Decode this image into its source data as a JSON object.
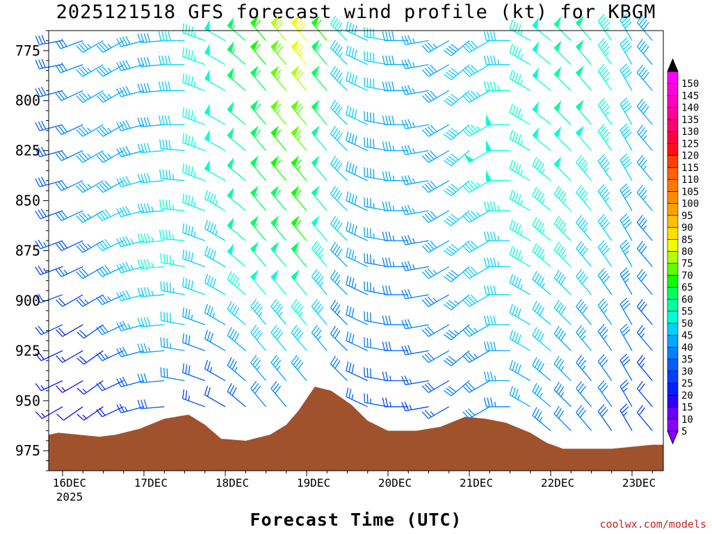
{
  "chart_data": {
    "type": "wind-barb-time-height",
    "title": "2025121518 GFS forecast wind profile (kt) for KBGM",
    "xlabel": "Forecast Time (UTC)",
    "ylabel": "",
    "credit": "coolwx.com/models",
    "x_range_days": [
      "2025-12-15T18",
      "2025-12-23T06"
    ],
    "y_range_hpa": [
      765,
      985
    ],
    "y_ticks": [
      775,
      800,
      825,
      850,
      875,
      900,
      925,
      950,
      975
    ],
    "x_ticks": [
      "16DEC",
      "17DEC",
      "18DEC",
      "19DEC",
      "20DEC",
      "21DEC",
      "22DEC",
      "23DEC"
    ],
    "x_year_label": "2025",
    "levels_hpa": [
      770,
      782,
      795,
      812,
      825,
      840,
      855,
      870,
      883,
      897,
      912,
      925,
      940,
      953,
      965
    ],
    "colorbar": {
      "values": [
        5,
        10,
        15,
        20,
        25,
        30,
        35,
        40,
        45,
        50,
        55,
        60,
        65,
        70,
        75,
        80,
        85,
        90,
        95,
        100,
        105,
        110,
        115,
        120,
        125,
        130,
        135,
        140,
        145,
        150
      ],
      "labels": [
        "5",
        "10",
        "15",
        "20",
        "25",
        "30",
        "35",
        "40",
        "45",
        "50",
        "55",
        "60",
        "65",
        "70",
        "75",
        "80",
        "85",
        "90",
        "95",
        "100",
        "105",
        "110",
        "115",
        "120",
        "125",
        "130",
        "135",
        "140",
        "145",
        "150"
      ],
      "colors": [
        "#8a00ff",
        "#6a00ff",
        "#2a00ff",
        "#0020ff",
        "#0040ff",
        "#005cff",
        "#0080ff",
        "#00a8ff",
        "#00d2ff",
        "#00ffd8",
        "#00ffa0",
        "#00ff60",
        "#10ff00",
        "#60ff00",
        "#b0ff00",
        "#f0ff00",
        "#ffe000",
        "#ffc000",
        "#ffa000",
        "#ff8c00",
        "#ff7800",
        "#ff6000",
        "#ff4000",
        "#ff1010",
        "#ff0040",
        "#ff0070",
        "#ff0098",
        "#ff00c0",
        "#ff00e0",
        "#ff00ff"
      ]
    },
    "terrain_color": "#a0522d",
    "terrain_hpa": [
      {
        "t": 0.0,
        "p": 967
      },
      {
        "t": 0.2,
        "p": 966
      },
      {
        "t": 0.7,
        "p": 968
      },
      {
        "t": 0.9,
        "p": 967
      },
      {
        "t": 1.2,
        "p": 964
      },
      {
        "t": 1.5,
        "p": 959
      },
      {
        "t": 1.8,
        "p": 957
      },
      {
        "t": 2.0,
        "p": 962
      },
      {
        "t": 2.2,
        "p": 969
      },
      {
        "t": 2.5,
        "p": 970
      },
      {
        "t": 2.8,
        "p": 967
      },
      {
        "t": 3.0,
        "p": 962
      },
      {
        "t": 3.15,
        "p": 955
      },
      {
        "t": 3.35,
        "p": 943
      },
      {
        "t": 3.55,
        "p": 945
      },
      {
        "t": 3.8,
        "p": 952
      },
      {
        "t": 4.0,
        "p": 960
      },
      {
        "t": 4.25,
        "p": 965
      },
      {
        "t": 4.6,
        "p": 965
      },
      {
        "t": 4.9,
        "p": 963
      },
      {
        "t": 5.2,
        "p": 958
      },
      {
        "t": 5.45,
        "p": 959
      },
      {
        "t": 5.7,
        "p": 961
      },
      {
        "t": 6.0,
        "p": 966
      },
      {
        "t": 6.2,
        "p": 971
      },
      {
        "t": 6.4,
        "p": 974
      },
      {
        "t": 7.0,
        "p": 974
      },
      {
        "t": 7.5,
        "p": 972
      }
    ],
    "winds": {
      "time_days": [
        0.0,
        0.25,
        0.5,
        0.75,
        1.0,
        1.25,
        1.5,
        1.75,
        2.0,
        2.25,
        2.5,
        2.75,
        3.0,
        3.25,
        3.5,
        3.75,
        4.0,
        4.25,
        4.5,
        4.75,
        5.0,
        5.25,
        5.5,
        5.75,
        6.0,
        6.25,
        6.5,
        6.75,
        7.0,
        7.25,
        7.5
      ],
      "dir_deg": [
        [
          260,
          260,
          250,
          240,
          240,
          255,
          265,
          270,
          290,
          300,
          310,
          320,
          320,
          320,
          320,
          315,
          295,
          280,
          270,
          260,
          240,
          230,
          240,
          270,
          300,
          310,
          315,
          320,
          325,
          330,
          320
        ],
        [
          260,
          260,
          250,
          240,
          240,
          255,
          265,
          270,
          290,
          300,
          310,
          320,
          320,
          320,
          320,
          315,
          295,
          280,
          270,
          260,
          240,
          230,
          240,
          270,
          300,
          310,
          315,
          320,
          325,
          330,
          320
        ],
        [
          260,
          255,
          245,
          240,
          240,
          255,
          265,
          270,
          290,
          300,
          310,
          320,
          320,
          320,
          320,
          315,
          295,
          280,
          270,
          260,
          240,
          230,
          240,
          270,
          300,
          310,
          315,
          320,
          325,
          330,
          320
        ],
        [
          260,
          255,
          245,
          240,
          240,
          255,
          265,
          270,
          290,
          300,
          310,
          320,
          320,
          320,
          320,
          315,
          295,
          280,
          270,
          260,
          240,
          230,
          240,
          270,
          300,
          310,
          315,
          320,
          325,
          330,
          320
        ],
        [
          260,
          255,
          245,
          240,
          240,
          255,
          265,
          275,
          290,
          300,
          310,
          320,
          320,
          320,
          320,
          315,
          295,
          280,
          270,
          260,
          240,
          230,
          240,
          270,
          300,
          310,
          315,
          320,
          325,
          330,
          320
        ],
        [
          255,
          255,
          245,
          240,
          240,
          255,
          265,
          275,
          290,
          300,
          310,
          320,
          320,
          320,
          320,
          315,
          295,
          280,
          270,
          260,
          240,
          230,
          240,
          270,
          300,
          310,
          315,
          320,
          325,
          330,
          320
        ],
        [
          255,
          250,
          245,
          240,
          245,
          255,
          265,
          275,
          290,
          300,
          310,
          320,
          320,
          320,
          320,
          315,
          295,
          280,
          270,
          260,
          240,
          230,
          240,
          270,
          300,
          310,
          315,
          320,
          325,
          330,
          320
        ],
        [
          255,
          250,
          245,
          240,
          245,
          255,
          265,
          275,
          290,
          300,
          310,
          320,
          320,
          320,
          320,
          315,
          295,
          280,
          270,
          260,
          240,
          230,
          240,
          270,
          300,
          310,
          315,
          320,
          325,
          330,
          320
        ],
        [
          255,
          250,
          245,
          240,
          245,
          255,
          265,
          280,
          290,
          300,
          310,
          320,
          320,
          320,
          320,
          315,
          295,
          280,
          270,
          260,
          240,
          230,
          240,
          270,
          300,
          310,
          315,
          320,
          325,
          330,
          320
        ],
        [
          250,
          250,
          240,
          240,
          245,
          255,
          265,
          280,
          290,
          300,
          310,
          320,
          320,
          320,
          320,
          315,
          295,
          280,
          270,
          260,
          240,
          230,
          240,
          270,
          300,
          310,
          315,
          320,
          325,
          330,
          320
        ],
        [
          250,
          245,
          240,
          235,
          245,
          255,
          265,
          280,
          290,
          300,
          310,
          320,
          320,
          320,
          320,
          315,
          295,
          280,
          270,
          260,
          240,
          230,
          240,
          270,
          300,
          310,
          315,
          320,
          325,
          330,
          320
        ],
        [
          250,
          245,
          240,
          235,
          245,
          255,
          265,
          280,
          290,
          300,
          310,
          320,
          320,
          320,
          320,
          315,
          295,
          280,
          270,
          260,
          240,
          230,
          240,
          270,
          300,
          310,
          315,
          320,
          325,
          330,
          320
        ],
        [
          245,
          245,
          240,
          235,
          245,
          255,
          265,
          280,
          290,
          300,
          310,
          320,
          320,
          320,
          320,
          315,
          295,
          280,
          270,
          260,
          240,
          230,
          240,
          270,
          300,
          310,
          315,
          320,
          325,
          330,
          320
        ],
        [
          245,
          240,
          235,
          235,
          245,
          255,
          265,
          280,
          290,
          300,
          310,
          320,
          320,
          320,
          320,
          315,
          295,
          280,
          270,
          260,
          240,
          230,
          240,
          270,
          300,
          310,
          315,
          320,
          325,
          330,
          320
        ],
        [
          240,
          240,
          235,
          235,
          245,
          255,
          265,
          280,
          290,
          300,
          310,
          320,
          320,
          320,
          320,
          315,
          295,
          280,
          270,
          260,
          240,
          230,
          240,
          270,
          300,
          310,
          315,
          320,
          325,
          330,
          320
        ]
      ],
      "spd_kt": [
        [
          30,
          28,
          32,
          35,
          35,
          38,
          38,
          40,
          45,
          48,
          55,
          62,
          70,
          78,
          60,
          45,
          40,
          40,
          38,
          35,
          35,
          38,
          40,
          42,
          45,
          48,
          50,
          50,
          45,
          40,
          38
        ],
        [
          30,
          28,
          32,
          35,
          35,
          38,
          38,
          40,
          45,
          48,
          55,
          60,
          68,
          75,
          58,
          44,
          40,
          40,
          38,
          35,
          38,
          40,
          42,
          44,
          45,
          48,
          50,
          50,
          45,
          40,
          38
        ],
        [
          30,
          28,
          32,
          35,
          36,
          38,
          38,
          40,
          45,
          48,
          55,
          58,
          65,
          70,
          56,
          44,
          40,
          40,
          38,
          36,
          38,
          40,
          44,
          46,
          46,
          48,
          50,
          50,
          45,
          40,
          38
        ],
        [
          30,
          28,
          32,
          35,
          36,
          38,
          38,
          40,
          45,
          48,
          52,
          58,
          65,
          68,
          55,
          42,
          40,
          38,
          38,
          36,
          38,
          42,
          46,
          48,
          46,
          48,
          50,
          50,
          45,
          40,
          38
        ],
        [
          30,
          28,
          32,
          35,
          36,
          38,
          40,
          42,
          45,
          48,
          52,
          58,
          62,
          66,
          52,
          42,
          38,
          38,
          36,
          36,
          38,
          42,
          48,
          48,
          46,
          48,
          48,
          48,
          45,
          40,
          36
        ],
        [
          28,
          28,
          30,
          35,
          38,
          40,
          42,
          44,
          45,
          48,
          52,
          55,
          60,
          64,
          50,
          42,
          38,
          38,
          36,
          36,
          38,
          42,
          46,
          48,
          46,
          46,
          48,
          46,
          44,
          40,
          36
        ],
        [
          28,
          28,
          30,
          35,
          40,
          42,
          44,
          46,
          45,
          46,
          50,
          55,
          58,
          62,
          50,
          40,
          38,
          36,
          36,
          36,
          38,
          40,
          44,
          46,
          46,
          46,
          46,
          46,
          44,
          38,
          36
        ],
        [
          28,
          26,
          28,
          34,
          40,
          44,
          46,
          46,
          44,
          44,
          50,
          55,
          56,
          60,
          48,
          40,
          38,
          36,
          34,
          34,
          38,
          40,
          42,
          44,
          46,
          46,
          46,
          44,
          42,
          38,
          34
        ],
        [
          26,
          24,
          26,
          30,
          38,
          44,
          46,
          46,
          42,
          42,
          48,
          52,
          52,
          56,
          46,
          38,
          36,
          34,
          34,
          34,
          36,
          38,
          42,
          44,
          45,
          45,
          45,
          42,
          40,
          36,
          32
        ],
        [
          24,
          22,
          22,
          26,
          34,
          40,
          44,
          44,
          40,
          40,
          46,
          48,
          48,
          52,
          44,
          36,
          34,
          34,
          32,
          32,
          34,
          36,
          40,
          42,
          44,
          44,
          42,
          40,
          38,
          34,
          30
        ],
        [
          22,
          20,
          18,
          22,
          30,
          36,
          40,
          40,
          36,
          36,
          42,
          44,
          44,
          46,
          40,
          34,
          32,
          32,
          30,
          30,
          32,
          34,
          36,
          40,
          42,
          42,
          40,
          38,
          36,
          32,
          28
        ],
        [
          20,
          18,
          16,
          18,
          26,
          32,
          36,
          36,
          32,
          30,
          38,
          40,
          40,
          42,
          36,
          32,
          30,
          30,
          28,
          28,
          30,
          32,
          34,
          38,
          40,
          40,
          38,
          36,
          34,
          30,
          26
        ],
        [
          18,
          16,
          14,
          16,
          22,
          28,
          32,
          32,
          28,
          26,
          34,
          36,
          36,
          38,
          34,
          30,
          28,
          28,
          26,
          26,
          28,
          30,
          32,
          36,
          38,
          38,
          36,
          34,
          32,
          28,
          24
        ],
        [
          16,
          14,
          12,
          14,
          18,
          24,
          28,
          28,
          24,
          22,
          28,
          30,
          30,
          34,
          30,
          28,
          26,
          26,
          24,
          24,
          26,
          28,
          30,
          34,
          36,
          36,
          34,
          32,
          30,
          26,
          22
        ],
        [
          14,
          12,
          10,
          12,
          14,
          20,
          24,
          24,
          20,
          18,
          24,
          26,
          26,
          30,
          28,
          26,
          24,
          24,
          22,
          22,
          24,
          26,
          28,
          32,
          34,
          34,
          32,
          30,
          28,
          24,
          20
        ]
      ]
    }
  }
}
